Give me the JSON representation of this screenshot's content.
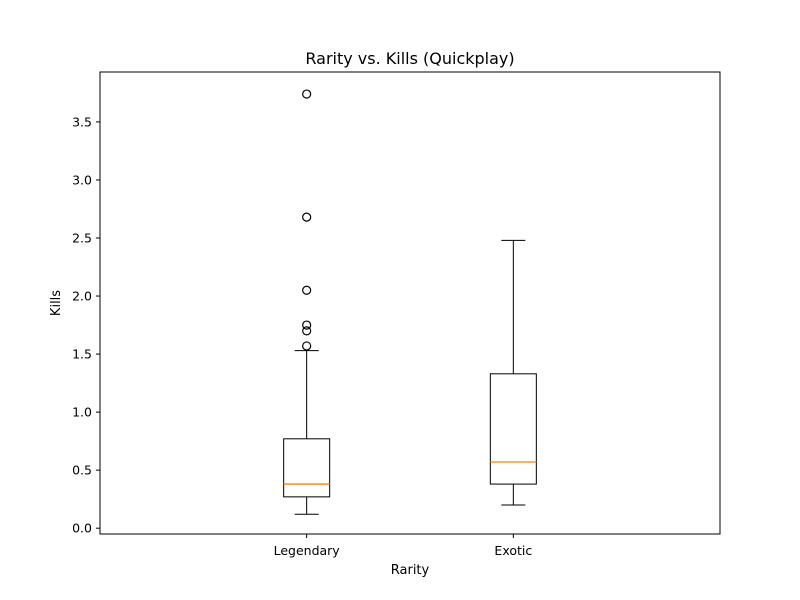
{
  "chart_data": {
    "type": "box",
    "title": "Rarity vs. Kills (Quickplay)",
    "xlabel": "Rarity",
    "ylabel": "Kills",
    "ylim": [
      -0.05,
      3.93
    ],
    "yticks": [
      0.0,
      0.5,
      1.0,
      1.5,
      2.0,
      2.5,
      3.0,
      3.5
    ],
    "ytick_labels": [
      "0.0",
      "0.5",
      "1.0",
      "1.5",
      "2.0",
      "2.5",
      "3.0",
      "3.5"
    ],
    "grid": false,
    "categories": [
      "Legendary",
      "Exotic"
    ],
    "boxes": [
      {
        "category": "Legendary",
        "whisker_low": 0.12,
        "q1": 0.27,
        "median": 0.38,
        "q3": 0.77,
        "whisker_high": 1.53,
        "outliers": [
          1.57,
          1.7,
          1.75,
          2.05,
          2.68,
          3.74
        ]
      },
      {
        "category": "Exotic",
        "whisker_low": 0.2,
        "q1": 0.38,
        "median": 0.57,
        "q3": 1.33,
        "whisker_high": 2.48,
        "outliers": []
      }
    ],
    "colors": {
      "box": "#000000",
      "median": "#ff7f0e",
      "outlier": "#000000"
    }
  }
}
